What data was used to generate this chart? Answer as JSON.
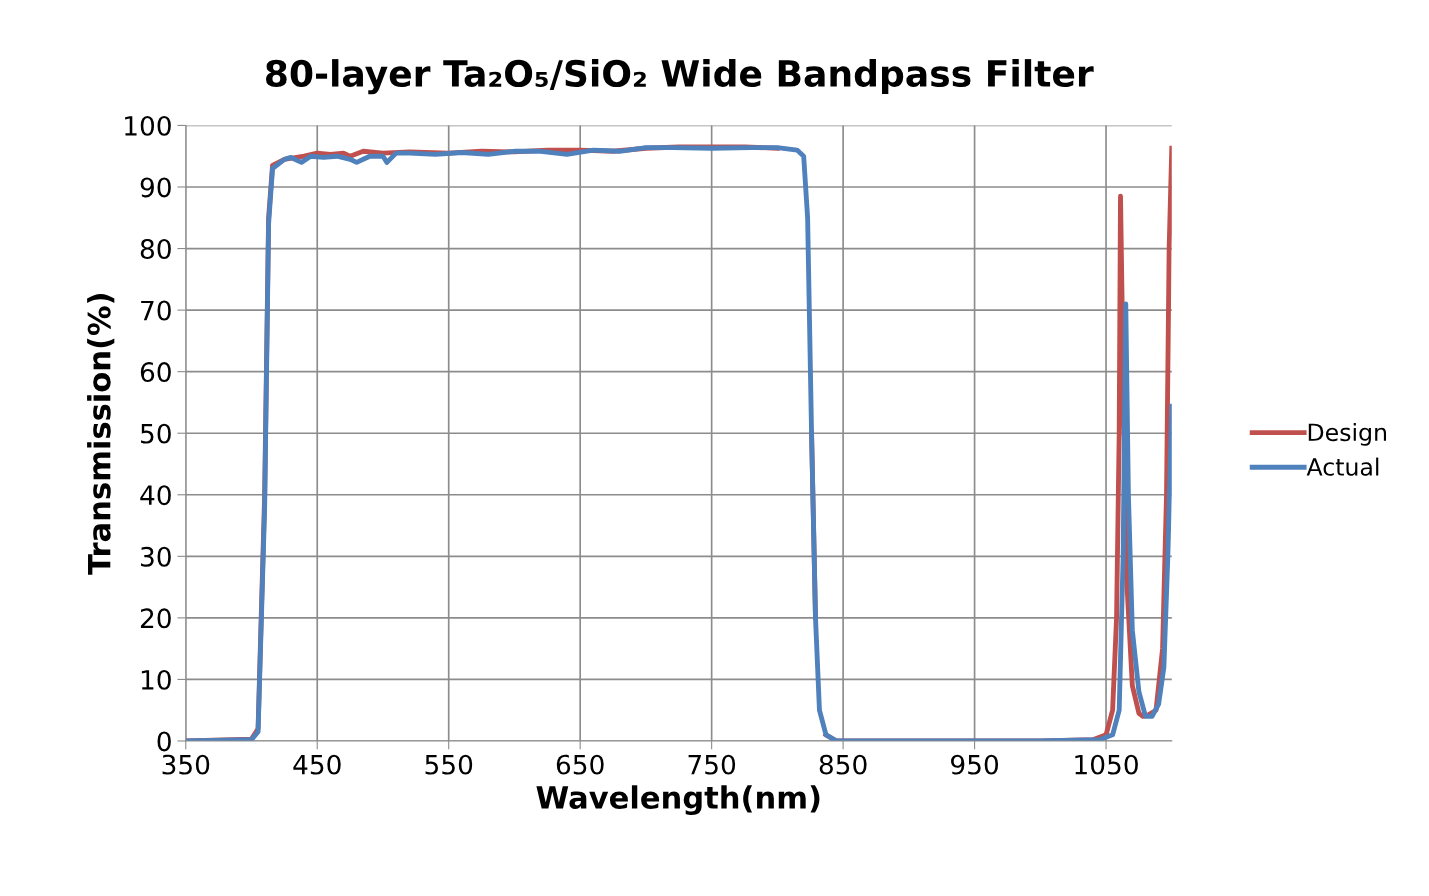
{
  "chart_data": {
    "type": "line",
    "title": "80-layer Ta₂O₅/SiO₂ Wide Bandpass Filter",
    "xlabel": "Wavelength(nm)",
    "ylabel": "Transmission(%)",
    "xlim": [
      350,
      1100
    ],
    "xticks": [
      350,
      450,
      550,
      650,
      750,
      850,
      950,
      1050
    ],
    "ylim": [
      0,
      100
    ],
    "yticks": [
      0,
      10,
      20,
      30,
      40,
      50,
      60,
      70,
      80,
      90,
      100
    ],
    "grid": true,
    "legend": "right",
    "marker": "none",
    "line_style": "solid",
    "series": [
      {
        "name": "Design",
        "color": "#c0504d",
        "x": [
          350,
          400,
          405,
          410,
          413,
          416,
          425,
          440,
          450,
          460,
          470,
          475,
          485,
          500,
          520,
          550,
          575,
          600,
          625,
          650,
          675,
          700,
          725,
          750,
          775,
          800,
          815,
          820,
          823,
          826,
          829,
          832,
          837,
          845,
          900,
          1000,
          1040,
          1050,
          1055,
          1058,
          1060,
          1061,
          1063,
          1066,
          1070,
          1075,
          1078,
          1082,
          1088,
          1093,
          1096,
          1098,
          1100
        ],
        "values": [
          0,
          0.3,
          2,
          40,
          85,
          93.5,
          94.5,
          95,
          95.5,
          95.3,
          95.5,
          95,
          95.8,
          95.5,
          95.7,
          95.5,
          95.8,
          95.7,
          96,
          96,
          95.8,
          96.3,
          96.5,
          96.5,
          96.5,
          96.3,
          null,
          null,
          null,
          50,
          20,
          null,
          1,
          0,
          0,
          0,
          0.2,
          1,
          5,
          20,
          50,
          88.5,
          60,
          25,
          9,
          4.5,
          4,
          4.2,
          5,
          15,
          40,
          80,
          96.3
        ]
      },
      {
        "name": "Actual",
        "color": "#4f81bd",
        "x": [
          350,
          400,
          405,
          410,
          413,
          416,
          425,
          430,
          438,
          445,
          455,
          465,
          475,
          480,
          485,
          490,
          500,
          503,
          510,
          520,
          540,
          560,
          580,
          600,
          620,
          640,
          660,
          680,
          700,
          720,
          750,
          780,
          800,
          815,
          820,
          823,
          826,
          829,
          832,
          837,
          845,
          900,
          1000,
          1045,
          1055,
          1060,
          1063,
          1065,
          1067,
          1070,
          1075,
          1080,
          1085,
          1090,
          1094,
          1097,
          1100
        ],
        "values": [
          0,
          0.2,
          1.5,
          38,
          84,
          93,
          94.5,
          94.8,
          94,
          95,
          94.8,
          95,
          94.5,
          94,
          94.5,
          95,
          95,
          94,
          95.5,
          95.5,
          95.3,
          95.6,
          95.3,
          95.8,
          95.8,
          95.3,
          96,
          95.8,
          96.4,
          96.4,
          96.3,
          96.4,
          96.4,
          96,
          95,
          85,
          50,
          20,
          5,
          1,
          0,
          0,
          0,
          0.2,
          1,
          5,
          30,
          71,
          40,
          18,
          8,
          4,
          4,
          6,
          12,
          30,
          54.4
        ]
      }
    ]
  }
}
